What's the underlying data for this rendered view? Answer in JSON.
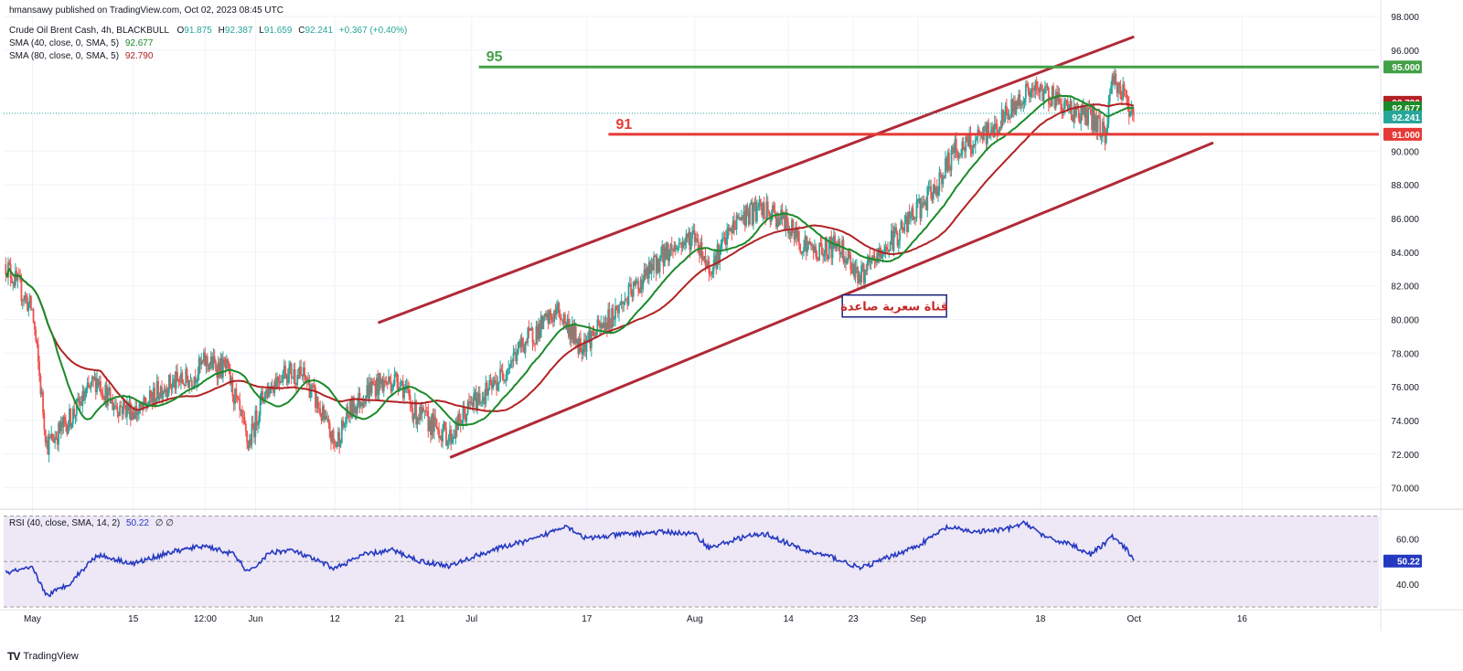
{
  "meta": {
    "published": "hmansawy published on TradingView.com, Oct 02, 2023 08:45 UTC",
    "footer_brand": "TradingView",
    "footer_logo": "TV"
  },
  "legend": {
    "symbol": "Crude Oil Brent Cash, 4h, BLACKBULL",
    "ohlc": {
      "O": "91.875",
      "H": "92.387",
      "L": "91.659",
      "C": "92.241",
      "change": "+0.367 (+0.40%)"
    },
    "sma40_label": "SMA (40, close, 0, SMA, 5)",
    "sma40_value": "92.677",
    "sma80_label": "SMA (80, close, 0, SMA, 5)",
    "sma80_value": "92.790",
    "rsi_label": "RSI (40, close, SMA, 14, 2)",
    "rsi_value": "50.22",
    "rsi_extra": "∅ ∅"
  },
  "colors": {
    "up": "#26a69a",
    "down": "#ef5350",
    "sma40": "#1b8a2a",
    "sma80": "#b22222",
    "channel": "#b02a37",
    "level95": "#43a047",
    "level91": "#e53935",
    "rsi": "#2438c0",
    "rsi_band": "#ede7f6",
    "grid": "#f0f3fa",
    "last": "#26a69a",
    "annotation": "#c62828",
    "annotation_border": "#1a237e"
  },
  "chart_data": [
    {
      "type": "candlestick",
      "title": "Crude Oil Brent Cash, 4h, BLACKBULL",
      "ylim": [
        69,
        98
      ],
      "y_ticks": [
        70,
        72,
        74,
        76,
        78,
        80,
        82,
        84,
        86,
        88,
        90,
        96,
        98
      ],
      "y_tick_labels": [
        "70.000",
        "72.000",
        "74.000",
        "76.000",
        "78.000",
        "80.000",
        "82.000",
        "84.000",
        "86.000",
        "88.000",
        "90.000",
        "96.000",
        "98.000"
      ],
      "x_ticks": [
        "May",
        "15",
        "12:00",
        "Jun",
        "12",
        "21",
        "Jul",
        "17",
        "Aug",
        "14",
        "23",
        "Sep",
        "18",
        "Oct",
        "16"
      ],
      "x_tick_dates": [
        "2023-05-01",
        "2023-05-15",
        "2023-05-25",
        "2023-06-01",
        "2023-06-12",
        "2023-06-21",
        "2023-07-01",
        "2023-07-17",
        "2023-08-01",
        "2023-08-14",
        "2023-08-23",
        "2023-09-01",
        "2023-09-18",
        "2023-10-01",
        "2023-10-16"
      ],
      "xlim": [
        "2023-04-27",
        "2023-11-04"
      ],
      "anchors": [
        [
          "2023-04-27",
          83.5
        ],
        [
          "2023-05-01",
          80.5
        ],
        [
          "2023-05-03",
          72.5
        ],
        [
          "2023-05-06",
          74
        ],
        [
          "2023-05-10",
          76.5
        ],
        [
          "2023-05-12",
          75
        ],
        [
          "2023-05-16",
          74.5
        ],
        [
          "2023-05-19",
          76
        ],
        [
          "2023-05-23",
          76.5
        ],
        [
          "2023-05-25",
          77.5
        ],
        [
          "2023-05-28",
          77
        ],
        [
          "2023-05-31",
          72.5
        ],
        [
          "2023-06-02",
          75.5
        ],
        [
          "2023-06-05",
          77
        ],
        [
          "2023-06-08",
          76.5
        ],
        [
          "2023-06-12",
          72.5
        ],
        [
          "2023-06-14",
          74.5
        ],
        [
          "2023-06-17",
          76
        ],
        [
          "2023-06-21",
          76.5
        ],
        [
          "2023-06-23",
          74.5
        ],
        [
          "2023-06-28",
          73
        ],
        [
          "2023-07-01",
          75
        ],
        [
          "2023-07-04",
          76
        ],
        [
          "2023-07-08",
          78.5
        ],
        [
          "2023-07-13",
          80.5
        ],
        [
          "2023-07-16",
          78.5
        ],
        [
          "2023-07-19",
          79.5
        ],
        [
          "2023-07-24",
          82
        ],
        [
          "2023-07-28",
          84
        ],
        [
          "2023-08-01",
          85
        ],
        [
          "2023-08-03",
          83
        ],
        [
          "2023-08-07",
          86
        ],
        [
          "2023-08-10",
          86.5
        ],
        [
          "2023-08-13",
          86
        ],
        [
          "2023-08-16",
          84.5
        ],
        [
          "2023-08-18",
          84
        ],
        [
          "2023-08-21",
          84.5
        ],
        [
          "2023-08-24",
          82.5
        ],
        [
          "2023-08-27",
          84
        ],
        [
          "2023-08-30",
          85.5
        ],
        [
          "2023-09-03",
          87.5
        ],
        [
          "2023-09-06",
          90
        ],
        [
          "2023-09-09",
          90.5
        ],
        [
          "2023-09-12",
          91.5
        ],
        [
          "2023-09-16",
          93.5
        ],
        [
          "2023-09-19",
          93.5
        ],
        [
          "2023-09-22",
          92.5
        ],
        [
          "2023-09-25",
          92
        ],
        [
          "2023-09-27",
          91
        ],
        [
          "2023-09-28",
          94.5
        ],
        [
          "2023-10-01",
          92.2
        ]
      ],
      "series": [
        {
          "name": "SMA (40, close, 0, SMA, 5)",
          "last": 92.677
        },
        {
          "name": "SMA (80, close, 0, SMA, 5)",
          "last": 92.79
        }
      ],
      "last_price": 92.241,
      "price_labels": [
        "95.000",
        "92.790",
        "92.677",
        "92.241",
        "91.000"
      ],
      "levels": [
        {
          "label": "95",
          "value": 95,
          "from": "2023-07-02"
        },
        {
          "label": "91",
          "value": 91,
          "from": "2023-07-20"
        }
      ],
      "channel_upper": [
        [
          "2023-06-18",
          79.8
        ],
        [
          "2023-10-01",
          96.8
        ]
      ],
      "channel_lower": [
        [
          "2023-06-28",
          71.8
        ],
        [
          "2023-10-12",
          90.5
        ]
      ],
      "annotation": "قناة سعرية صاعدة"
    },
    {
      "type": "line",
      "title": "RSI (40, close, SMA, 14, 2)",
      "ylim": [
        30,
        71
      ],
      "band": [
        30,
        70
      ],
      "midline": 50,
      "y_ticks": [
        40,
        60
      ],
      "last": 50.22,
      "anchors": [
        [
          "2023-04-27",
          45
        ],
        [
          "2023-05-01",
          47
        ],
        [
          "2023-05-03",
          35
        ],
        [
          "2023-05-06",
          40
        ],
        [
          "2023-05-10",
          53
        ],
        [
          "2023-05-15",
          49
        ],
        [
          "2023-05-20",
          54
        ],
        [
          "2023-05-25",
          57
        ],
        [
          "2023-05-29",
          53
        ],
        [
          "2023-05-31",
          45
        ],
        [
          "2023-06-03",
          54
        ],
        [
          "2023-06-06",
          55
        ],
        [
          "2023-06-12",
          47
        ],
        [
          "2023-06-16",
          53
        ],
        [
          "2023-06-20",
          55
        ],
        [
          "2023-06-24",
          50
        ],
        [
          "2023-06-28",
          48
        ],
        [
          "2023-07-02",
          53
        ],
        [
          "2023-07-06",
          57
        ],
        [
          "2023-07-10",
          60
        ],
        [
          "2023-07-14",
          66
        ],
        [
          "2023-07-17",
          60
        ],
        [
          "2023-07-22",
          62
        ],
        [
          "2023-07-28",
          63
        ],
        [
          "2023-08-01",
          62
        ],
        [
          "2023-08-03",
          56
        ],
        [
          "2023-08-08",
          61
        ],
        [
          "2023-08-11",
          62
        ],
        [
          "2023-08-16",
          55
        ],
        [
          "2023-08-20",
          52
        ],
        [
          "2023-08-24",
          47
        ],
        [
          "2023-08-28",
          52
        ],
        [
          "2023-09-01",
          57
        ],
        [
          "2023-09-05",
          65
        ],
        [
          "2023-09-09",
          63
        ],
        [
          "2023-09-13",
          64
        ],
        [
          "2023-09-16",
          67
        ],
        [
          "2023-09-19",
          60
        ],
        [
          "2023-09-22",
          58
        ],
        [
          "2023-09-25",
          53
        ],
        [
          "2023-09-28",
          61
        ],
        [
          "2023-09-30",
          55
        ],
        [
          "2023-10-01",
          50.22
        ]
      ]
    }
  ]
}
